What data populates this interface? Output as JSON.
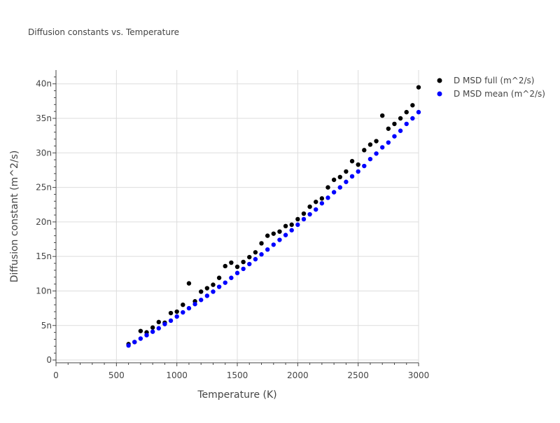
{
  "chart_data": {
    "type": "scatter",
    "title": "Diffusion constants vs. Temperature",
    "xlabel": "Temperature (K)",
    "ylabel": "Diffusion constant (m^2/s)",
    "xlim": [
      0,
      3000
    ],
    "ylim": [
      -0.4,
      42
    ],
    "xticks": [
      0,
      500,
      1000,
      1500,
      2000,
      2500,
      3000
    ],
    "xtick_labels": [
      "0",
      "500",
      "1000",
      "1500",
      "2000",
      "2500",
      "3000"
    ],
    "yticks": [
      0,
      5,
      10,
      15,
      20,
      25,
      30,
      35,
      40
    ],
    "ytick_labels": [
      "0",
      "5n",
      "10n",
      "15n",
      "20n",
      "25n",
      "30n",
      "35n",
      "40n"
    ],
    "legend_position": "top-right, outside plot",
    "series": [
      {
        "name": "D MSD full (m^2/s)",
        "color": "#000000",
        "x": [
          600,
          650,
          700,
          750,
          800,
          850,
          900,
          950,
          1000,
          1050,
          1100,
          1150,
          1200,
          1250,
          1300,
          1350,
          1400,
          1450,
          1500,
          1550,
          1600,
          1650,
          1700,
          1750,
          1800,
          1850,
          1900,
          1950,
          2000,
          2050,
          2100,
          2150,
          2200,
          2250,
          2300,
          2350,
          2400,
          2450,
          2500,
          2550,
          2600,
          2650,
          2700,
          2750,
          2800,
          2850,
          2900,
          2950,
          3000
        ],
        "y": [
          2.3,
          2.6,
          4.2,
          4.0,
          4.7,
          5.5,
          5.4,
          6.8,
          7.0,
          8.0,
          11.1,
          8.5,
          9.9,
          10.4,
          10.9,
          11.9,
          13.6,
          14.1,
          13.5,
          14.2,
          14.9,
          15.6,
          16.9,
          18.0,
          18.3,
          18.6,
          19.4,
          19.6,
          20.4,
          21.2,
          22.2,
          22.9,
          23.4,
          25.0,
          26.1,
          26.5,
          27.3,
          28.8,
          28.3,
          30.4,
          31.2,
          31.7,
          35.4,
          33.5,
          34.2,
          35.0,
          35.9,
          36.9,
          39.5
        ]
      },
      {
        "name": "D MSD mean (m^2/s)",
        "color": "#0000ff",
        "x": [
          600,
          650,
          700,
          750,
          800,
          850,
          900,
          950,
          1000,
          1050,
          1100,
          1150,
          1200,
          1250,
          1300,
          1350,
          1400,
          1450,
          1500,
          1550,
          1600,
          1650,
          1700,
          1750,
          1800,
          1850,
          1900,
          1950,
          2000,
          2050,
          2100,
          2150,
          2200,
          2250,
          2300,
          2350,
          2400,
          2450,
          2500,
          2550,
          2600,
          2650,
          2700,
          2750,
          2800,
          2850,
          2900,
          2950,
          3000
        ],
        "y": [
          2.1,
          2.6,
          3.1,
          3.6,
          4.1,
          4.6,
          5.2,
          5.7,
          6.3,
          6.9,
          7.5,
          8.1,
          8.7,
          9.3,
          9.9,
          10.6,
          11.2,
          11.9,
          12.6,
          13.2,
          13.9,
          14.6,
          15.3,
          16.0,
          16.7,
          17.4,
          18.1,
          18.8,
          19.6,
          20.4,
          21.1,
          21.8,
          22.7,
          23.5,
          24.3,
          25.0,
          25.8,
          26.6,
          27.3,
          28.1,
          29.1,
          29.9,
          30.8,
          31.5,
          32.4,
          33.2,
          34.2,
          35.0,
          35.9
        ]
      }
    ]
  }
}
